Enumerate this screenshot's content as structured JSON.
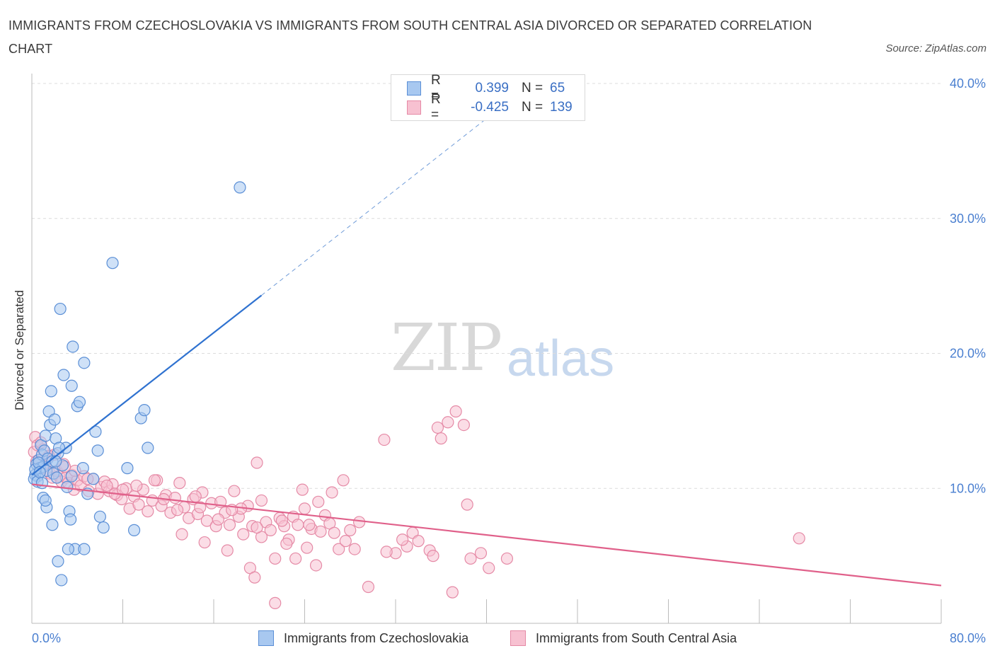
{
  "title": "IMMIGRANTS FROM CZECHOSLOVAKIA VS IMMIGRANTS FROM SOUTH CENTRAL ASIA DIVORCED OR SEPARATED CORRELATION CHART",
  "source": "Source: ZipAtlas.com",
  "watermark": {
    "zip": "ZIP",
    "atlas": "atlas"
  },
  "legend": {
    "rows": [
      {
        "r_label": "R =",
        "r_value": "0.399",
        "n_label": "N =",
        "n_value": "65",
        "color": "#a8c8f0",
        "border": "#5b8fd6"
      },
      {
        "r_label": "R =",
        "r_value": "-0.425",
        "n_label": "N =",
        "n_value": "139",
        "color": "#f7c1d1",
        "border": "#e58aa6"
      }
    ]
  },
  "bottom_legend": {
    "series1": "Immigrants from Czechoslovakia",
    "series2": "Immigrants from South Central Asia"
  },
  "chart_data": {
    "type": "scatter",
    "title": "IMMIGRANTS FROM CZECHOSLOVAKIA VS IMMIGRANTS FROM SOUTH CENTRAL ASIA DIVORCED OR SEPARATED CORRELATION CHART",
    "ylabel": "Divorced or Separated",
    "xlabel": "",
    "xlim": [
      0,
      80
    ],
    "ylim": [
      0,
      40
    ],
    "x_tick_labels": [
      "0.0%",
      "80.0%"
    ],
    "y_ticks": [
      10,
      20,
      30,
      40
    ],
    "y_tick_labels": [
      "10.0%",
      "20.0%",
      "30.0%",
      "40.0%"
    ],
    "grid": "horizontal dashed",
    "legend_placement": "top-center",
    "series": [
      {
        "name": "Immigrants from Czechoslovakia",
        "color": "#5b8fd6",
        "fill": "#a8c8f0",
        "trend": {
          "x": [
            0,
            20.2
          ],
          "y": [
            11.0,
            24.3
          ],
          "extended_to": [
            41.5,
            38.4
          ]
        },
        "points": [
          [
            0.3,
            11.0
          ],
          [
            0.4,
            11.8
          ],
          [
            0.5,
            10.9
          ],
          [
            0.6,
            12.1
          ],
          [
            0.7,
            11.5
          ],
          [
            0.8,
            13.2
          ],
          [
            0.9,
            12.5
          ],
          [
            1.0,
            11.6
          ],
          [
            1.1,
            12.8
          ],
          [
            1.2,
            13.9
          ],
          [
            1.3,
            11.3
          ],
          [
            1.4,
            12.2
          ],
          [
            1.5,
            15.7
          ],
          [
            1.6,
            14.7
          ],
          [
            1.7,
            17.2
          ],
          [
            1.8,
            12.0
          ],
          [
            1.9,
            11.1
          ],
          [
            2.0,
            15.1
          ],
          [
            2.1,
            13.7
          ],
          [
            2.2,
            10.8
          ],
          [
            2.3,
            12.6
          ],
          [
            2.5,
            23.3
          ],
          [
            2.7,
            11.7
          ],
          [
            2.8,
            18.4
          ],
          [
            3.0,
            13.0
          ],
          [
            3.1,
            10.1
          ],
          [
            3.3,
            8.3
          ],
          [
            3.4,
            7.7
          ],
          [
            3.5,
            17.6
          ],
          [
            3.6,
            20.5
          ],
          [
            3.8,
            5.5
          ],
          [
            4.0,
            16.1
          ],
          [
            4.2,
            16.4
          ],
          [
            4.5,
            11.5
          ],
          [
            4.6,
            19.3
          ],
          [
            4.9,
            9.6
          ],
          [
            5.4,
            10.7
          ],
          [
            5.6,
            14.2
          ],
          [
            5.8,
            12.8
          ],
          [
            6.0,
            7.9
          ],
          [
            4.6,
            5.5
          ],
          [
            3.2,
            5.5
          ],
          [
            2.3,
            4.6
          ],
          [
            2.6,
            3.2
          ],
          [
            6.3,
            7.1
          ],
          [
            7.1,
            26.7
          ],
          [
            8.4,
            11.5
          ],
          [
            9.0,
            6.9
          ],
          [
            9.6,
            15.2
          ],
          [
            9.9,
            15.8
          ],
          [
            10.2,
            13.0
          ],
          [
            18.3,
            32.3
          ],
          [
            1.0,
            9.3
          ],
          [
            1.3,
            8.6
          ],
          [
            1.8,
            7.3
          ],
          [
            0.2,
            10.7
          ],
          [
            0.3,
            11.4
          ],
          [
            0.5,
            10.5
          ],
          [
            0.6,
            11.9
          ],
          [
            0.7,
            11.2
          ],
          [
            0.9,
            10.4
          ],
          [
            1.2,
            9.1
          ],
          [
            2.1,
            12.0
          ],
          [
            2.4,
            13.0
          ],
          [
            3.5,
            10.9
          ]
        ]
      },
      {
        "name": "Immigrants from South Central Asia",
        "color": "#e58aa6",
        "fill": "#f7c1d1",
        "trend": {
          "x": [
            0,
            80
          ],
          "y": [
            10.3,
            2.8
          ]
        },
        "points": [
          [
            0.2,
            12.7
          ],
          [
            0.3,
            13.8
          ],
          [
            0.5,
            13.2
          ],
          [
            0.7,
            12.1
          ],
          [
            0.9,
            11.5
          ],
          [
            1.0,
            12.9
          ],
          [
            1.2,
            11.8
          ],
          [
            1.4,
            12.3
          ],
          [
            1.6,
            11.1
          ],
          [
            1.8,
            10.8
          ],
          [
            2.0,
            12.5
          ],
          [
            2.2,
            11.3
          ],
          [
            2.4,
            10.9
          ],
          [
            2.6,
            10.5
          ],
          [
            2.8,
            11.8
          ],
          [
            3.0,
            10.8
          ],
          [
            3.2,
            10.4
          ],
          [
            3.5,
            11.0
          ],
          [
            3.7,
            9.9
          ],
          [
            4.0,
            10.6
          ],
          [
            4.3,
            10.2
          ],
          [
            4.6,
            10.9
          ],
          [
            5.0,
            9.8
          ],
          [
            5.4,
            10.7
          ],
          [
            5.8,
            9.6
          ],
          [
            6.1,
            10.1
          ],
          [
            6.4,
            10.5
          ],
          [
            6.8,
            9.8
          ],
          [
            7.1,
            10.3
          ],
          [
            7.5,
            9.5
          ],
          [
            7.9,
            9.2
          ],
          [
            8.3,
            10.0
          ],
          [
            8.6,
            8.5
          ],
          [
            9.0,
            9.4
          ],
          [
            9.4,
            8.8
          ],
          [
            9.8,
            9.9
          ],
          [
            10.2,
            8.3
          ],
          [
            10.6,
            9.1
          ],
          [
            11.0,
            10.6
          ],
          [
            11.4,
            8.7
          ],
          [
            11.8,
            9.5
          ],
          [
            12.2,
            8.2
          ],
          [
            12.6,
            9.3
          ],
          [
            13.0,
            10.4
          ],
          [
            13.4,
            8.6
          ],
          [
            13.8,
            7.8
          ],
          [
            14.2,
            9.2
          ],
          [
            14.6,
            8.1
          ],
          [
            15.0,
            9.7
          ],
          [
            15.4,
            7.6
          ],
          [
            15.8,
            8.9
          ],
          [
            16.2,
            7.2
          ],
          [
            16.6,
            9.0
          ],
          [
            17.0,
            8.2
          ],
          [
            17.4,
            7.3
          ],
          [
            17.8,
            9.8
          ],
          [
            18.2,
            7.9
          ],
          [
            18.6,
            6.6
          ],
          [
            19.0,
            8.7
          ],
          [
            19.4,
            7.2
          ],
          [
            19.8,
            11.9
          ],
          [
            20.2,
            6.4
          ],
          [
            20.6,
            7.5
          ],
          [
            21.0,
            6.9
          ],
          [
            21.4,
            4.8
          ],
          [
            21.8,
            7.8
          ],
          [
            22.2,
            7.2
          ],
          [
            22.6,
            6.2
          ],
          [
            23.0,
            7.9
          ],
          [
            23.4,
            7.3
          ],
          [
            23.8,
            9.9
          ],
          [
            24.2,
            5.6
          ],
          [
            24.6,
            7.0
          ],
          [
            25.0,
            4.3
          ],
          [
            25.4,
            6.8
          ],
          [
            25.8,
            8.0
          ],
          [
            26.2,
            7.4
          ],
          [
            26.6,
            6.7
          ],
          [
            27.0,
            5.5
          ],
          [
            27.4,
            10.6
          ],
          [
            28.0,
            6.9
          ],
          [
            28.8,
            7.5
          ],
          [
            29.6,
            2.7
          ],
          [
            31.0,
            13.6
          ],
          [
            32.0,
            5.2
          ],
          [
            33.0,
            5.7
          ],
          [
            33.5,
            6.7
          ],
          [
            34.0,
            6.1
          ],
          [
            35.0,
            5.4
          ],
          [
            35.3,
            5.0
          ],
          [
            35.7,
            14.5
          ],
          [
            36.0,
            13.7
          ],
          [
            36.6,
            14.9
          ],
          [
            37.0,
            2.3
          ],
          [
            37.3,
            15.7
          ],
          [
            38.0,
            14.7
          ],
          [
            38.3,
            8.8
          ],
          [
            38.6,
            4.8
          ],
          [
            39.5,
            5.2
          ],
          [
            40.2,
            4.1
          ],
          [
            41.8,
            4.8
          ],
          [
            67.5,
            6.3
          ],
          [
            6.6,
            10.2
          ],
          [
            10.8,
            10.6
          ],
          [
            12.8,
            8.4
          ],
          [
            14.4,
            9.4
          ],
          [
            16.4,
            7.7
          ],
          [
            18.4,
            8.5
          ],
          [
            20.2,
            9.1
          ],
          [
            22.4,
            5.9
          ],
          [
            24.0,
            8.5
          ],
          [
            26.4,
            9.7
          ],
          [
            19.2,
            4.1
          ],
          [
            19.6,
            3.4
          ],
          [
            21.4,
            1.5
          ],
          [
            3.8,
            11.3
          ],
          [
            7.3,
            9.6
          ],
          [
            9.2,
            10.2
          ],
          [
            13.2,
            6.6
          ],
          [
            15.2,
            6.0
          ],
          [
            17.2,
            5.4
          ],
          [
            23.2,
            4.8
          ],
          [
            25.2,
            9.0
          ],
          [
            28.4,
            5.5
          ],
          [
            31.2,
            5.3
          ],
          [
            32.6,
            6.2
          ],
          [
            0.4,
            12.0
          ],
          [
            0.8,
            13.4
          ],
          [
            1.5,
            12.4
          ],
          [
            2.9,
            11.6
          ],
          [
            4.9,
            10.7
          ],
          [
            8.0,
            9.9
          ],
          [
            11.6,
            9.2
          ],
          [
            14.8,
            8.6
          ],
          [
            17.6,
            8.4
          ],
          [
            19.8,
            7.1
          ],
          [
            22.0,
            7.6
          ],
          [
            24.4,
            7.3
          ],
          [
            27.6,
            6.1
          ]
        ]
      }
    ]
  }
}
